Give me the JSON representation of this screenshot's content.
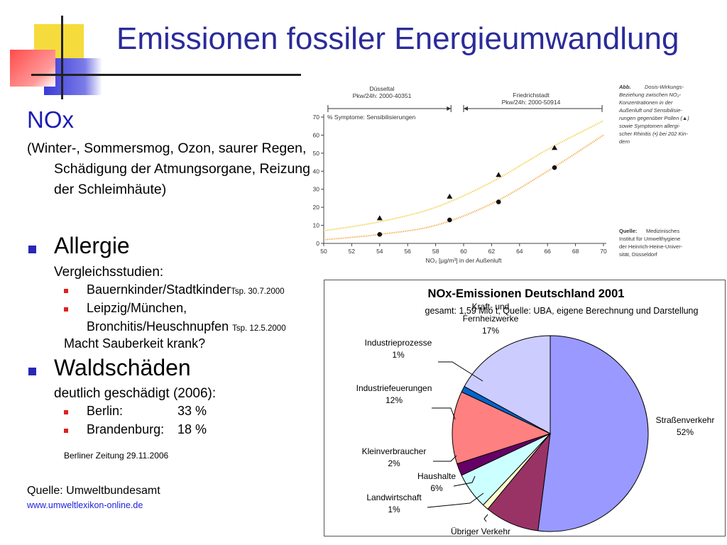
{
  "title": "Emissionen fossiler Energieumwandlung",
  "left": {
    "nox_heading": "NOx",
    "nox_desc": "(Winter-, Sommersmog, Ozon, saurer Regen, Schädigung der Atmungsorgane, Reizung der Schleimhäute)",
    "allergie": {
      "heading": "Allergie",
      "sub": "Vergleichsstudien:",
      "items": [
        {
          "text": "Bauernkinder/Stadtkinder",
          "ref": "Tsp. 30.7.2000"
        },
        {
          "text": "Leipzig/München,",
          "ref": ""
        },
        {
          "text": "Bronchitis/Heuschnupfen",
          "ref": "Tsp. 12.5.2000"
        }
      ],
      "note": "Macht Sauberkeit krank?"
    },
    "waldschaeden": {
      "heading": "Waldschäden",
      "sub": "deutlich geschädigt (2006):",
      "items": [
        {
          "label": "Berlin:",
          "value": "33 %"
        },
        {
          "label": "Brandenburg:",
          "value": "18 %"
        }
      ],
      "source": "Berliner Zeitung 29.11.2006"
    },
    "quelle": "Quelle: Umweltbundesamt",
    "link": "www.umweltlexikon-online.de"
  },
  "chart_data": [
    {
      "type": "line",
      "range_labels": {
        "a_name": "Düsseltal",
        "a_traffic": "Pkw/24h: 2000-40351",
        "b_name": "Friedrichstadt",
        "b_traffic": "Pkw/24h: 2000-50914"
      },
      "y_annotation": "% Symptome: Sensibilisierungen",
      "xlabel": "NO₂ [µg/m³] in der Außenluft",
      "xlim": [
        50,
        70
      ],
      "ylim": [
        0,
        70
      ],
      "xticks": [
        50,
        52,
        54,
        56,
        58,
        60,
        62,
        64,
        66,
        68,
        70
      ],
      "yticks": [
        0,
        10,
        20,
        30,
        40,
        50,
        60,
        70
      ],
      "series": [
        {
          "marker": "triangle",
          "color": "#f2c21a",
          "curve": [
            [
              50,
              7
            ],
            [
              54,
              12
            ],
            [
              58,
              20
            ],
            [
              62,
              34
            ],
            [
              66,
              52
            ],
            [
              70,
              68
            ]
          ],
          "points": [
            [
              54,
              14
            ],
            [
              59,
              26
            ],
            [
              62.5,
              38
            ],
            [
              66.5,
              53
            ]
          ]
        },
        {
          "marker": "circle",
          "color": "#f0951c",
          "curve": [
            [
              50,
              2
            ],
            [
              54,
              5
            ],
            [
              58,
              10
            ],
            [
              62,
              22
            ],
            [
              66,
              40
            ],
            [
              70,
              60
            ]
          ],
          "points": [
            [
              54,
              5
            ],
            [
              59,
              13
            ],
            [
              62.5,
              23
            ],
            [
              66.5,
              42
            ]
          ]
        }
      ],
      "caption": {
        "abb": "Abb.",
        "text": "Dosis-Wirkungs-Beziehung zwischen NO₂-Konzentrationen in der Außenluft und Sensibilisierungen gegenüber Pollen (▲) sowie Symptomen allergischer Rhinitis (•) bei 202 Kindern",
        "lines": [
          "Dosis-Wirkungs-",
          "Beziehung zwischen NO₂-",
          "Konzentrationen in der",
          "Außenluft und Sensibilisie-",
          "rungen gegenüber Pollen (▲)",
          "sowie Symptomen allergi-",
          "scher Rhinitis (•) bei 202 Kin-",
          "dern"
        ]
      },
      "quelle": {
        "label": "Quelle:",
        "text": "Medizinisches Institut für Umwelthygiene der Heinrich-Heine-Universität, Düsseldorf",
        "lines": [
          "Medizinisches",
          "Institut für Umwelthygiene",
          "der Heinrich-Heine-Univer-",
          "sität, Düsseldorf"
        ]
      }
    },
    {
      "type": "pie",
      "title": "NOx-Emissionen Deutschland 2001",
      "subtitle": "gesamt: 1,59 Mio t, Quelle: UBA, eigene Berechnung und Darstellung",
      "slices": [
        {
          "label": "Straßenverkehr",
          "value": 52,
          "color": "#9999ff"
        },
        {
          "label": "Übriger Verkehr",
          "value": 9,
          "color": "#993366"
        },
        {
          "label": "Landwirtschaft",
          "value": 1,
          "color": "#ffffcc"
        },
        {
          "label": "Haushalte",
          "value": 6,
          "color": "#ccffff"
        },
        {
          "label": "Kleinverbraucher",
          "value": 2,
          "color": "#660066"
        },
        {
          "label": "Industriefeuerungen",
          "value": 12,
          "color": "#ff8080"
        },
        {
          "label": "Industrieprozesse",
          "value": 1,
          "color": "#0066cc"
        },
        {
          "label": "Kraft- und Fernheizwerke",
          "value": 17,
          "color": "#ccccff"
        }
      ],
      "display_labels": [
        {
          "lines": [
            "Straßenverkehr",
            "52%"
          ]
        },
        {
          "lines": [
            "Übriger Verkehr"
          ]
        },
        {
          "lines": [
            "Landwirtschaft",
            "1%"
          ]
        },
        {
          "lines": [
            "Haushalte",
            "6%"
          ]
        },
        {
          "lines": [
            "Kleinverbraucher",
            "2%"
          ]
        },
        {
          "lines": [
            "Industriefeuerungen",
            "12%"
          ]
        },
        {
          "lines": [
            "Industrieprozesse",
            "1%"
          ]
        },
        {
          "lines": [
            "Kraft- und",
            "Fernheizwerke",
            "17%"
          ]
        }
      ]
    }
  ]
}
